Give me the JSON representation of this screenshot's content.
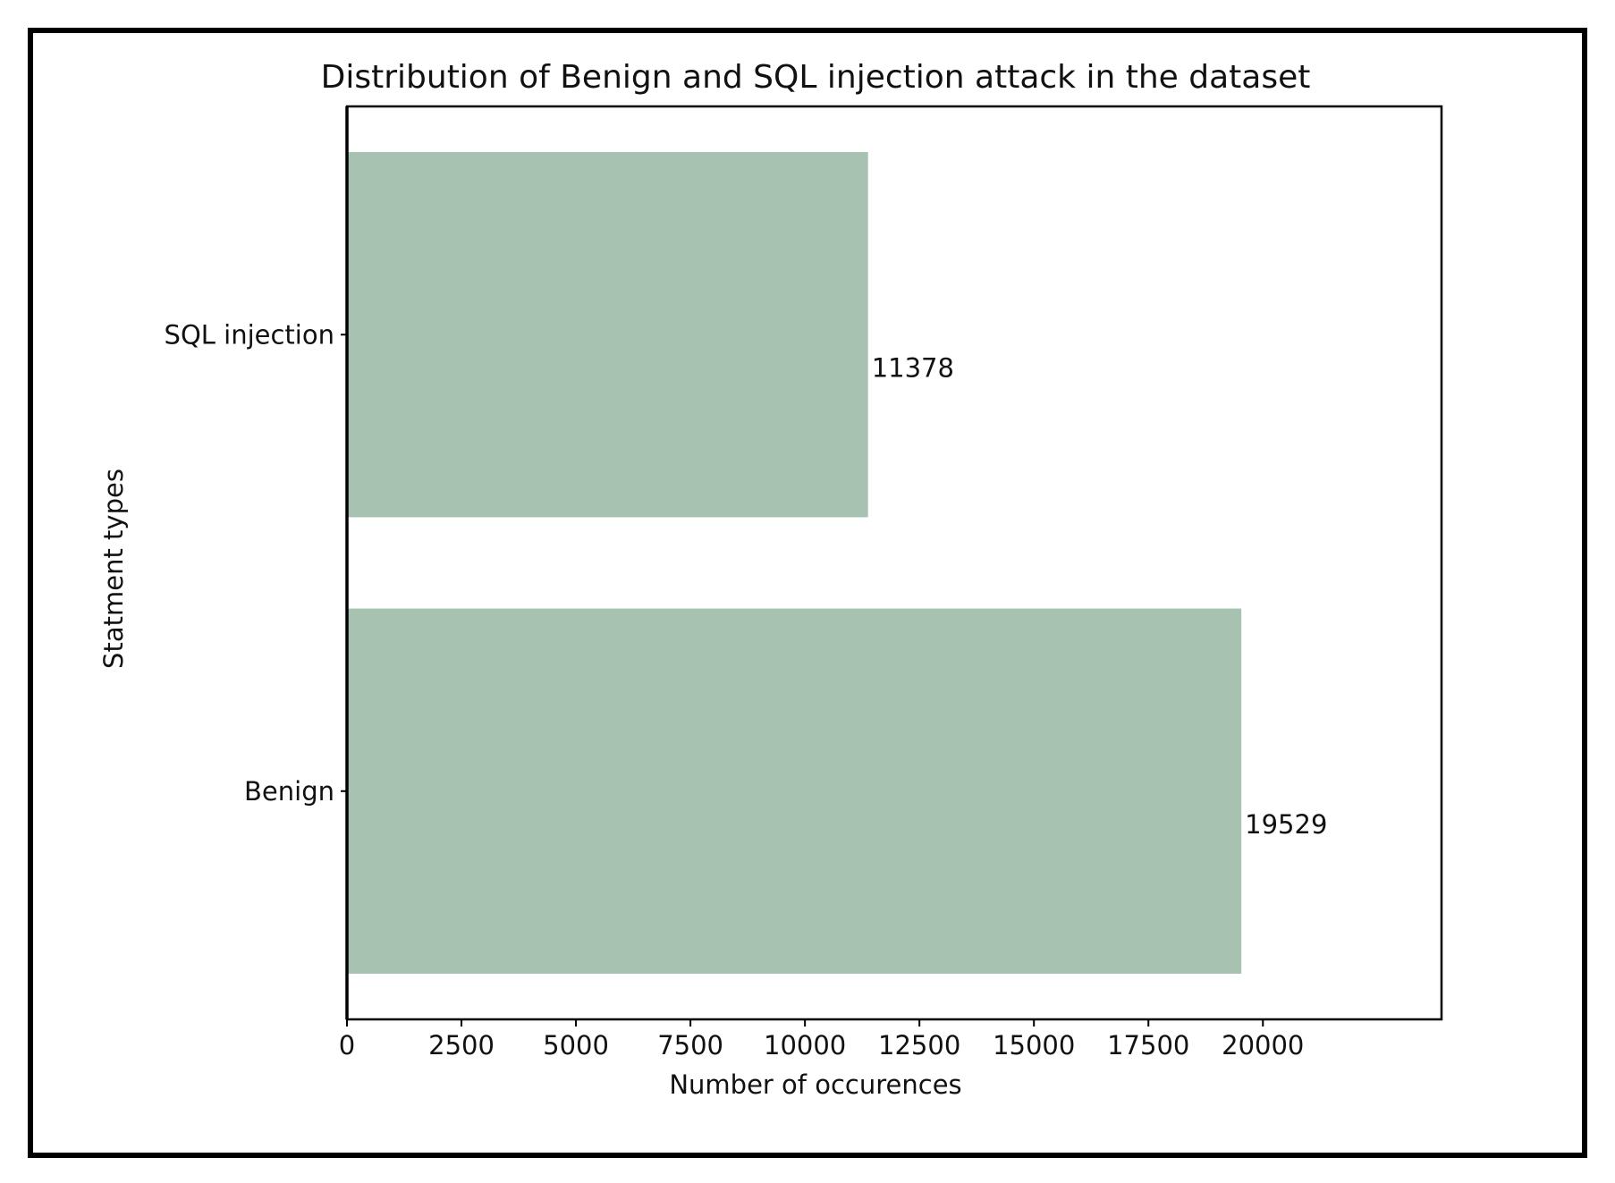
{
  "chart_data": {
    "type": "bar",
    "orientation": "horizontal",
    "title": "Distribution of Benign and SQL injection attack in the dataset",
    "xlabel": "Number of occurences",
    "ylabel": "Statment types",
    "categories": [
      "SQL injection",
      "Benign"
    ],
    "values": [
      11378,
      19529
    ],
    "data_labels": [
      "11378",
      "19529"
    ],
    "xlim": [
      0,
      23900
    ],
    "xticks": [
      0,
      2500,
      5000,
      7500,
      10000,
      12500,
      15000,
      17500,
      20000
    ],
    "xtick_labels": [
      "0",
      "2500",
      "5000",
      "7500",
      "10000",
      "12500",
      "15000",
      "17500",
      "20000"
    ],
    "bar_color": "#a7c2b0",
    "grid": false,
    "legend": "none"
  }
}
